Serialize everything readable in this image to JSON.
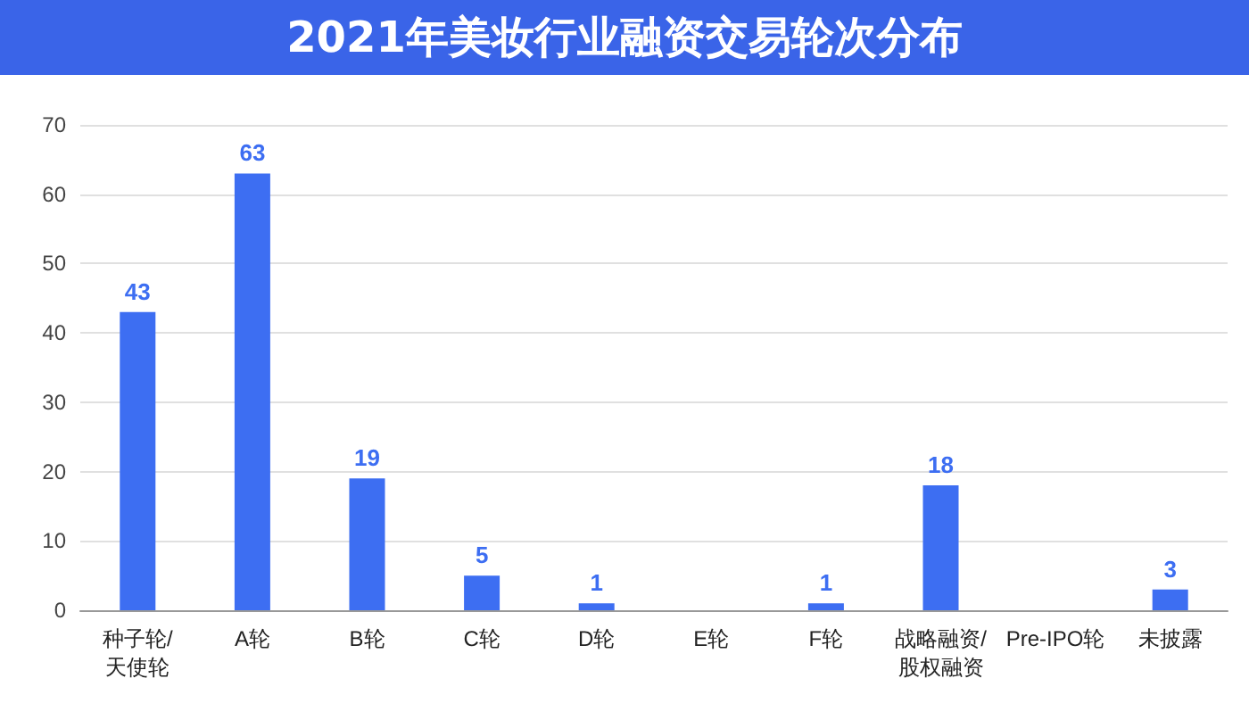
{
  "chart_data": {
    "type": "bar",
    "title": "2021年美妆行业融资交易轮次分布",
    "categories": [
      "种子轮/天使轮",
      "A轮",
      "B轮",
      "C轮",
      "D轮",
      "E轮",
      "F轮",
      "战略融资/股权融资",
      "Pre-IPO轮",
      "未披露"
    ],
    "values": [
      43,
      63,
      19,
      5,
      1,
      0,
      1,
      18,
      0,
      3
    ],
    "value_labels": [
      "43",
      "63",
      "19",
      "5",
      "1",
      null,
      "1",
      "18",
      null,
      "3"
    ],
    "color": "#3d6ef2",
    "ylim": [
      0,
      70
    ],
    "yticks": [
      0,
      10,
      20,
      30,
      40,
      50,
      60,
      70
    ],
    "grid": "y"
  }
}
